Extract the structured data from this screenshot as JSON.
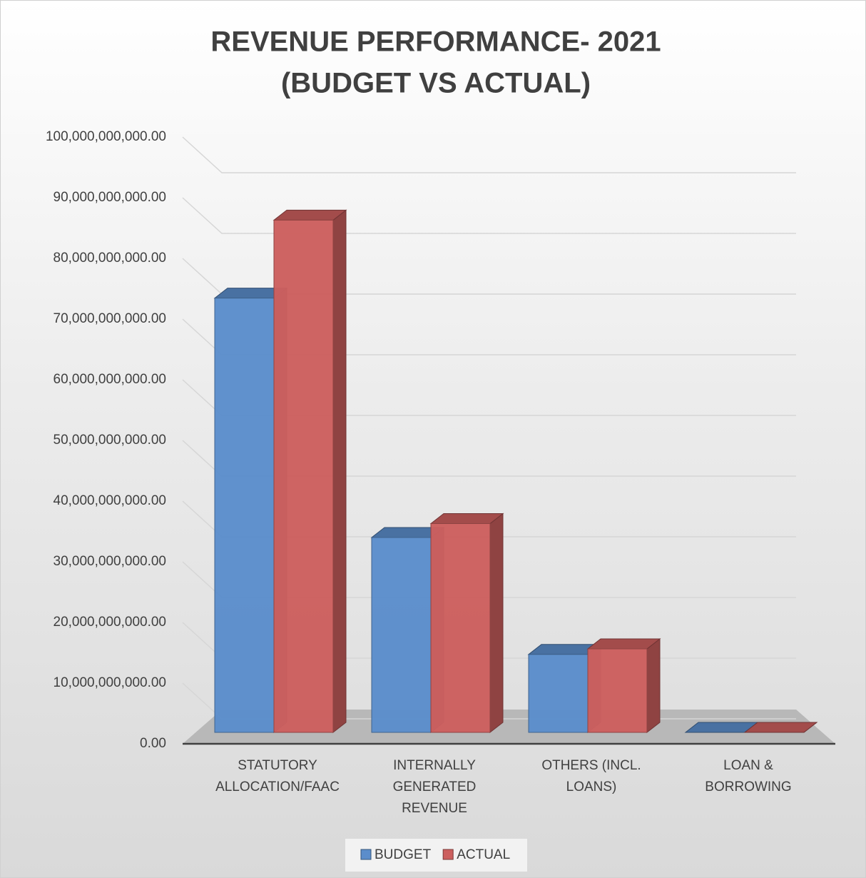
{
  "chart_data": {
    "type": "bar3d",
    "title": "REVENUE PERFORMANCE- 2021",
    "subtitle": "(BUDGET VS ACTUAL)",
    "categories": [
      "STATUTORY ALLOCATION/FAAC",
      "INTERNALLY GENERATED REVENUE",
      "OTHERS (INCL. LOANS)",
      "LOAN & BORROWING"
    ],
    "series": [
      {
        "name": "BUDGET",
        "color": "#5b8dcb",
        "values": [
          78000000000,
          35000000000,
          14000000000,
          0
        ]
      },
      {
        "name": "ACTUAL",
        "color": "#cc5f5e",
        "values": [
          92000000000,
          37500000000,
          15000000000,
          0
        ]
      }
    ],
    "ylim": [
      0,
      100000000000
    ],
    "yticks": [
      {
        "value": 0,
        "label": "0.00"
      },
      {
        "value": 10000000000,
        "label": "10,000,000,000.00"
      },
      {
        "value": 20000000000,
        "label": "20,000,000,000.00"
      },
      {
        "value": 30000000000,
        "label": "30,000,000,000.00"
      },
      {
        "value": 40000000000,
        "label": "40,000,000,000.00"
      },
      {
        "value": 50000000000,
        "label": "50,000,000,000.00"
      },
      {
        "value": 60000000000,
        "label": "60,000,000,000.00"
      },
      {
        "value": 70000000000,
        "label": "70,000,000,000.00"
      },
      {
        "value": 80000000000,
        "label": "80,000,000,000.00"
      },
      {
        "value": 90000000000,
        "label": "90,000,000,000.00"
      },
      {
        "value": 100000000000,
        "label": "100,000,000,000.00"
      }
    ],
    "grid": true,
    "legend": "bottom"
  }
}
